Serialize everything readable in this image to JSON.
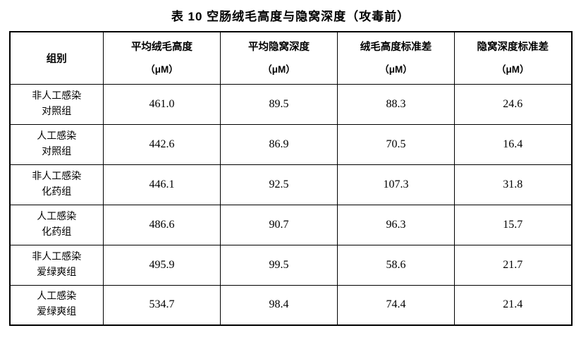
{
  "title": "表 10  空肠绒毛高度与隐窝深度（攻毒前）",
  "table": {
    "group_header": "组别",
    "columns": [
      {
        "label": "平均绒毛高度",
        "unit": "（μM）"
      },
      {
        "label": "平均隐窝深度",
        "unit": "（μM）"
      },
      {
        "label": "绒毛高度标准差",
        "unit": "（μM）"
      },
      {
        "label": "隐窝深度标准差",
        "unit": "（μM）"
      }
    ],
    "rows": [
      {
        "group": [
          "非人工感染",
          "对照组"
        ],
        "values": [
          "461.0",
          "89.5",
          "88.3",
          "24.6"
        ]
      },
      {
        "group": [
          "人工感染",
          "对照组"
        ],
        "values": [
          "442.6",
          "86.9",
          "70.5",
          "16.4"
        ]
      },
      {
        "group": [
          "非人工感染",
          "化药组"
        ],
        "values": [
          "446.1",
          "92.5",
          "107.3",
          "31.8"
        ]
      },
      {
        "group": [
          "人工感染",
          "化药组"
        ],
        "values": [
          "486.6",
          "90.7",
          "96.3",
          "15.7"
        ]
      },
      {
        "group": [
          "非人工感染",
          "爱绿爽组"
        ],
        "values": [
          "495.9",
          "99.5",
          "58.6",
          "21.7"
        ]
      },
      {
        "group": [
          "人工感染",
          "爱绿爽组"
        ],
        "values": [
          "534.7",
          "98.4",
          "74.4",
          "21.4"
        ]
      }
    ]
  }
}
